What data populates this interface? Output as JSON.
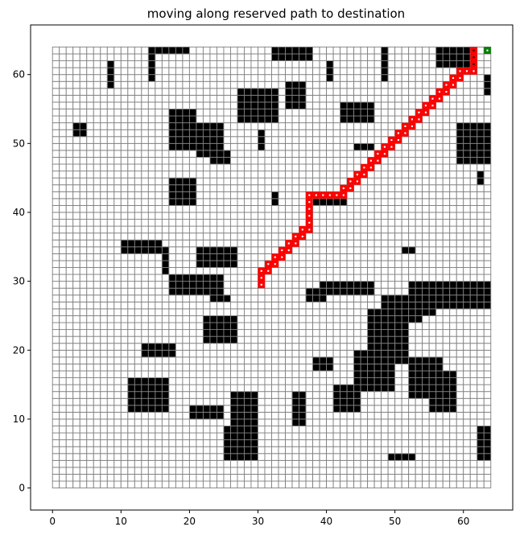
{
  "chart_data": {
    "type": "heatmap",
    "title": "moving along reserved path to destination",
    "xlabel": "",
    "ylabel": "",
    "xlim": [
      -3.2,
      67.2
    ],
    "ylim": [
      -3.2,
      67.2
    ],
    "xticks": [
      0,
      10,
      20,
      30,
      40,
      50,
      60
    ],
    "yticks": [
      0,
      10,
      20,
      30,
      40,
      50,
      60
    ],
    "grid": {
      "cols": 64,
      "rows": 64,
      "x0": 0,
      "y0": 0,
      "cell_size": 1,
      "grid_color": "#808080",
      "free_color": "#ffffff"
    },
    "obstacles": {
      "color": "#000000",
      "rects": [
        [
          15,
          63,
          5,
          1
        ],
        [
          32,
          62,
          6,
          2
        ],
        [
          56,
          61,
          6,
          3
        ],
        [
          8,
          58,
          1,
          4
        ],
        [
          14,
          59,
          1,
          5
        ],
        [
          48,
          59,
          1,
          5
        ],
        [
          40,
          59,
          1,
          3
        ],
        [
          63,
          57,
          1,
          3
        ],
        [
          27,
          53,
          6,
          5
        ],
        [
          34,
          55,
          3,
          4
        ],
        [
          42,
          53,
          5,
          3
        ],
        [
          3,
          51,
          2,
          2
        ],
        [
          17,
          49,
          4,
          6
        ],
        [
          21,
          48,
          4,
          5
        ],
        [
          23,
          47,
          3,
          2
        ],
        [
          30,
          49,
          1,
          3
        ],
        [
          44,
          49,
          3,
          1
        ],
        [
          59,
          47,
          6,
          6
        ],
        [
          62,
          44,
          1,
          2
        ],
        [
          17,
          41,
          4,
          4
        ],
        [
          32,
          41,
          1,
          2
        ],
        [
          38,
          41,
          5,
          1
        ],
        [
          10,
          34,
          6,
          2
        ],
        [
          16,
          31,
          1,
          4
        ],
        [
          21,
          32,
          6,
          3
        ],
        [
          51,
          34,
          2,
          1
        ],
        [
          17,
          28,
          8,
          3
        ],
        [
          23,
          27,
          3,
          1
        ],
        [
          39,
          28,
          8,
          2
        ],
        [
          37,
          27,
          3,
          2
        ],
        [
          56,
          26,
          8,
          4
        ],
        [
          52,
          25,
          4,
          5
        ],
        [
          48,
          24,
          6,
          4
        ],
        [
          46,
          18,
          6,
          8
        ],
        [
          22,
          21,
          5,
          4
        ],
        [
          13,
          19,
          5,
          2
        ],
        [
          38,
          17,
          3,
          2
        ],
        [
          44,
          14,
          6,
          6
        ],
        [
          52,
          13,
          5,
          6
        ],
        [
          55,
          11,
          4,
          6
        ],
        [
          41,
          11,
          4,
          4
        ],
        [
          11,
          11,
          6,
          5
        ],
        [
          26,
          8,
          4,
          6
        ],
        [
          20,
          10,
          5,
          2
        ],
        [
          35,
          9,
          2,
          5
        ],
        [
          25,
          4,
          5,
          5
        ],
        [
          62,
          4,
          2,
          5
        ],
        [
          49,
          4,
          4,
          1
        ]
      ]
    },
    "path": {
      "color": "#ff0000",
      "cells": [
        [
          30,
          29
        ],
        [
          30,
          30
        ],
        [
          30,
          31
        ],
        [
          31,
          31
        ],
        [
          31,
          32
        ],
        [
          32,
          32
        ],
        [
          32,
          33
        ],
        [
          33,
          33
        ],
        [
          33,
          34
        ],
        [
          34,
          34
        ],
        [
          34,
          35
        ],
        [
          35,
          35
        ],
        [
          35,
          36
        ],
        [
          36,
          36
        ],
        [
          36,
          37
        ],
        [
          37,
          37
        ],
        [
          37,
          38
        ],
        [
          37,
          39
        ],
        [
          37,
          40
        ],
        [
          37,
          41
        ],
        [
          37,
          42
        ],
        [
          38,
          42
        ],
        [
          39,
          42
        ],
        [
          40,
          42
        ],
        [
          41,
          42
        ],
        [
          42,
          42
        ],
        [
          42,
          43
        ],
        [
          43,
          43
        ],
        [
          43,
          44
        ],
        [
          44,
          44
        ],
        [
          44,
          45
        ],
        [
          45,
          45
        ],
        [
          45,
          46
        ],
        [
          46,
          46
        ],
        [
          46,
          47
        ],
        [
          47,
          47
        ],
        [
          47,
          48
        ],
        [
          48,
          48
        ],
        [
          48,
          49
        ],
        [
          49,
          49
        ],
        [
          49,
          50
        ],
        [
          50,
          50
        ],
        [
          50,
          51
        ],
        [
          51,
          51
        ],
        [
          51,
          52
        ],
        [
          52,
          52
        ],
        [
          52,
          53
        ],
        [
          53,
          53
        ],
        [
          53,
          54
        ],
        [
          54,
          54
        ],
        [
          54,
          55
        ],
        [
          55,
          55
        ],
        [
          55,
          56
        ],
        [
          56,
          56
        ],
        [
          56,
          57
        ],
        [
          57,
          57
        ],
        [
          57,
          58
        ],
        [
          58,
          58
        ],
        [
          58,
          59
        ],
        [
          59,
          59
        ],
        [
          59,
          60
        ],
        [
          60,
          60
        ],
        [
          61,
          60
        ],
        [
          61,
          61
        ],
        [
          61,
          62
        ],
        [
          61,
          63
        ]
      ]
    },
    "destination": {
      "color": "#008000",
      "cell": [
        63,
        63
      ]
    }
  }
}
